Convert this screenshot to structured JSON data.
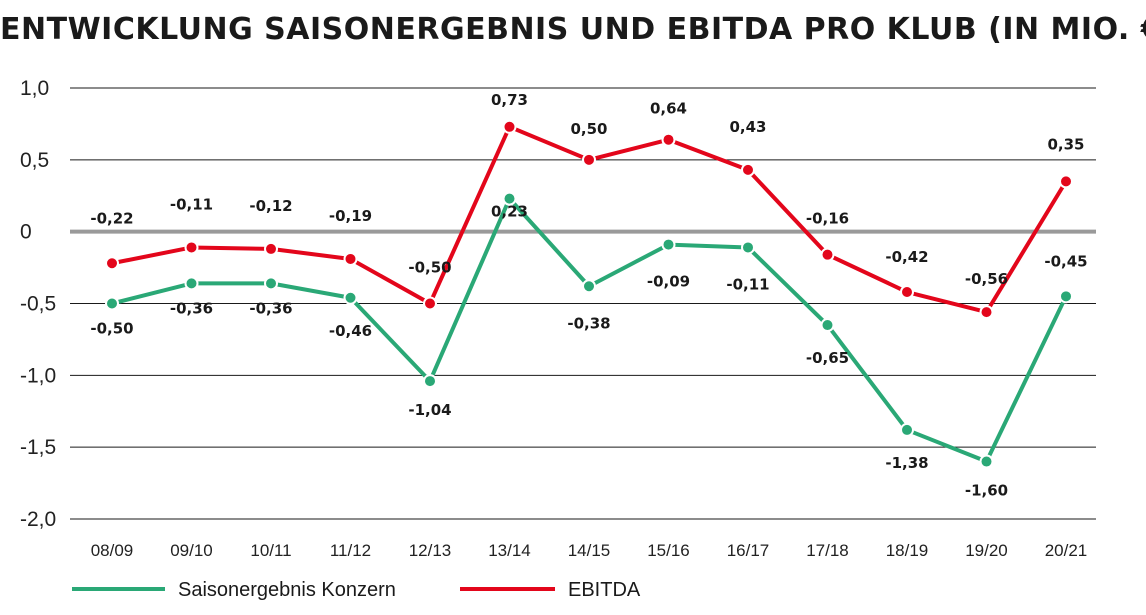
{
  "chart_data": {
    "type": "line",
    "title": "ENTWICKLUNG SAISONERGEBNIS UND EBITDA PRO KLUB (IN MIO. €)",
    "categories": [
      "08/09",
      "09/10",
      "10/11",
      "11/12",
      "12/13",
      "13/14",
      "14/15",
      "15/16",
      "16/17",
      "17/18",
      "18/19",
      "19/20",
      "20/21"
    ],
    "ylim": [
      -2.0,
      1.0
    ],
    "yticks": [
      1.0,
      0.5,
      0,
      -0.5,
      -1.0,
      -1.5,
      -2.0
    ],
    "ytick_labels": [
      "1,0",
      "0,5",
      "0",
      "-0,5",
      "-1,0",
      "-1,5",
      "-2,0"
    ],
    "grid": true,
    "legend_position": "bottom-left",
    "series": [
      {
        "name": "Saisonergebnis Konzern",
        "color": "#2aa876",
        "values": [
          -0.5,
          -0.36,
          -0.36,
          -0.46,
          -1.04,
          0.23,
          -0.38,
          -0.09,
          -0.11,
          -0.65,
          -1.38,
          -1.6,
          -0.45
        ],
        "labels": [
          "-0,50",
          "-0,36",
          "-0,36",
          "-0,46",
          "-1,04",
          "0,23",
          "-0,38",
          "-0,09",
          "-0,11",
          "-0,65",
          "-1,38",
          "-1,60",
          "-0,45"
        ]
      },
      {
        "name": "EBITDA",
        "color": "#e3061b",
        "values": [
          -0.22,
          -0.11,
          -0.12,
          -0.19,
          -0.5,
          0.73,
          0.5,
          0.64,
          0.43,
          -0.16,
          -0.42,
          -0.56,
          0.35
        ],
        "labels": [
          "-0,22",
          "-0,11",
          "-0,12",
          "-0,19",
          "-0,50",
          "0,73",
          "0,50",
          "0,64",
          "0,43",
          "-0,16",
          "-0,42",
          "-0,56",
          "0,35"
        ]
      }
    ]
  }
}
